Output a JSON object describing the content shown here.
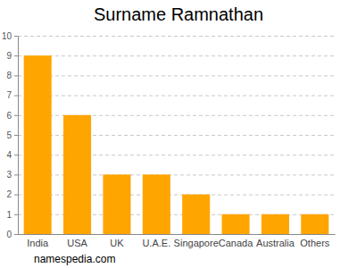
{
  "chart_data": {
    "type": "bar",
    "title": "Surname Ramnathan",
    "categories": [
      "India",
      "USA",
      "UK",
      "U.A.E.",
      "Singapore",
      "Canada",
      "Australia",
      "Others"
    ],
    "values": [
      9,
      6,
      3,
      3,
      2,
      1,
      1,
      1
    ],
    "color": "#ffa500",
    "ylim": [
      0,
      10
    ],
    "yticks": [
      0,
      1,
      2,
      3,
      4,
      5,
      6,
      7,
      8,
      9,
      10
    ],
    "grid": true,
    "annotation": "namespedia.com"
  }
}
